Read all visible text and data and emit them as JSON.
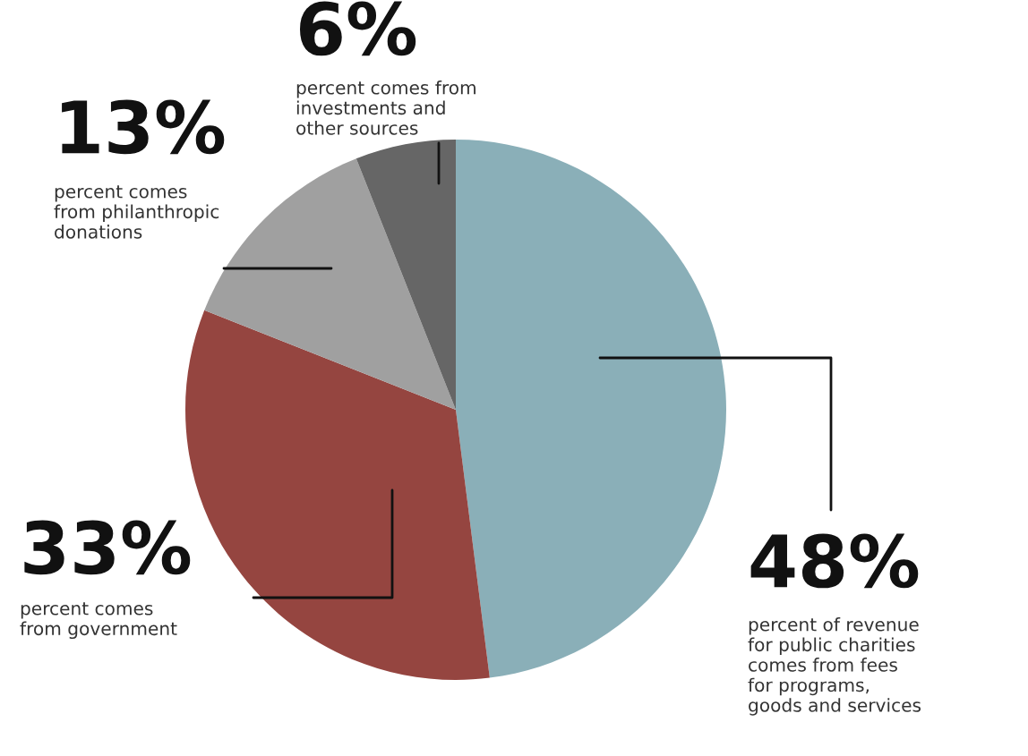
{
  "chart_data": {
    "type": "pie",
    "categories": [
      "percent of revenue\nfor public charities\ncomes from fees\nfor programs,\ngoods and services",
      "percent comes\nfrom government",
      "percent comes\nfrom philanthropic\ndonations",
      "percent comes from\ninvestments and\nother sources"
    ],
    "values": [
      48,
      33,
      13,
      6
    ],
    "colors": [
      "#8aafb8",
      "#954540",
      "#a0a0a0",
      "#666666"
    ],
    "value_labels": [
      "48%",
      "33%",
      "13%",
      "6%"
    ]
  }
}
